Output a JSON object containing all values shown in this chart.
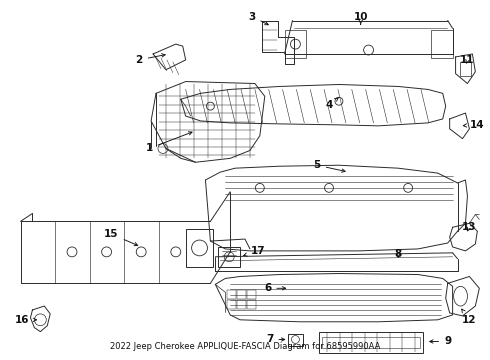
{
  "title": "2022 Jeep Cherokee APPLIQUE-FASCIA Diagram for 68595990AA",
  "background_color": "#ffffff",
  "line_color": "#2a2a2a",
  "figsize": [
    4.9,
    3.6
  ],
  "dpi": 100,
  "label_fontsize": 7.5,
  "title_fontsize": 6.0
}
